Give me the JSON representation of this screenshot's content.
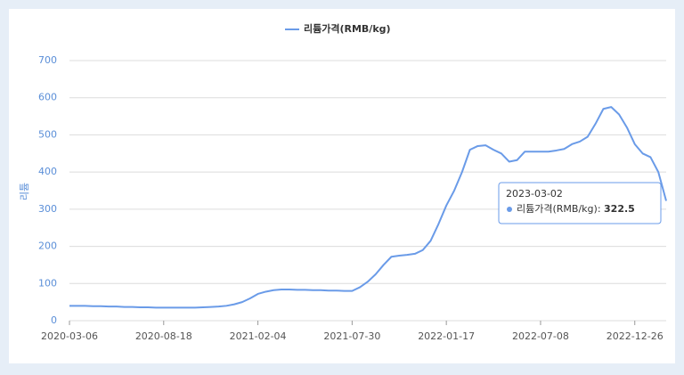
{
  "chart_data": {
    "type": "line",
    "y_label": "리튬",
    "categories": [
      "2020-03-06",
      null,
      null,
      null,
      null,
      null,
      null,
      null,
      null,
      null,
      null,
      null,
      "2020-08-18",
      null,
      null,
      null,
      null,
      null,
      null,
      null,
      null,
      null,
      null,
      null,
      "2021-02-04",
      null,
      null,
      null,
      null,
      null,
      null,
      null,
      null,
      null,
      null,
      null,
      "2021-07-30",
      null,
      null,
      null,
      null,
      null,
      null,
      null,
      null,
      null,
      null,
      null,
      "2022-01-17",
      null,
      null,
      null,
      null,
      null,
      null,
      null,
      null,
      null,
      null,
      null,
      "2022-07-08",
      null,
      null,
      null,
      null,
      null,
      null,
      null,
      null,
      null,
      null,
      null,
      "2022-12-26",
      null,
      null,
      null,
      null
    ],
    "series": [
      {
        "name": "리튬가격(RMB/kg)",
        "color": "#6a9be8",
        "values": [
          40,
          40,
          40,
          39,
          39,
          38,
          38,
          37,
          37,
          36,
          36,
          35,
          35,
          35,
          35,
          35,
          35,
          36,
          37,
          38,
          40,
          44,
          50,
          60,
          72,
          78,
          82,
          84,
          84,
          83,
          83,
          82,
          82,
          81,
          81,
          80,
          80,
          90,
          105,
          125,
          150,
          172,
          175,
          177,
          180,
          190,
          215,
          260,
          310,
          350,
          400,
          460,
          470,
          472,
          460,
          450,
          428,
          432,
          455,
          455,
          455,
          455,
          458,
          462,
          475,
          482,
          495,
          530,
          570,
          575,
          555,
          520,
          475,
          450,
          440,
          400,
          322.5
        ]
      }
    ],
    "ylim": [
      0,
      700
    ],
    "yticks": [
      0,
      100,
      200,
      300,
      400,
      500,
      600,
      700
    ],
    "grid": true,
    "legend": "top",
    "tooltip": {
      "x": "2023-03-02"
    }
  }
}
